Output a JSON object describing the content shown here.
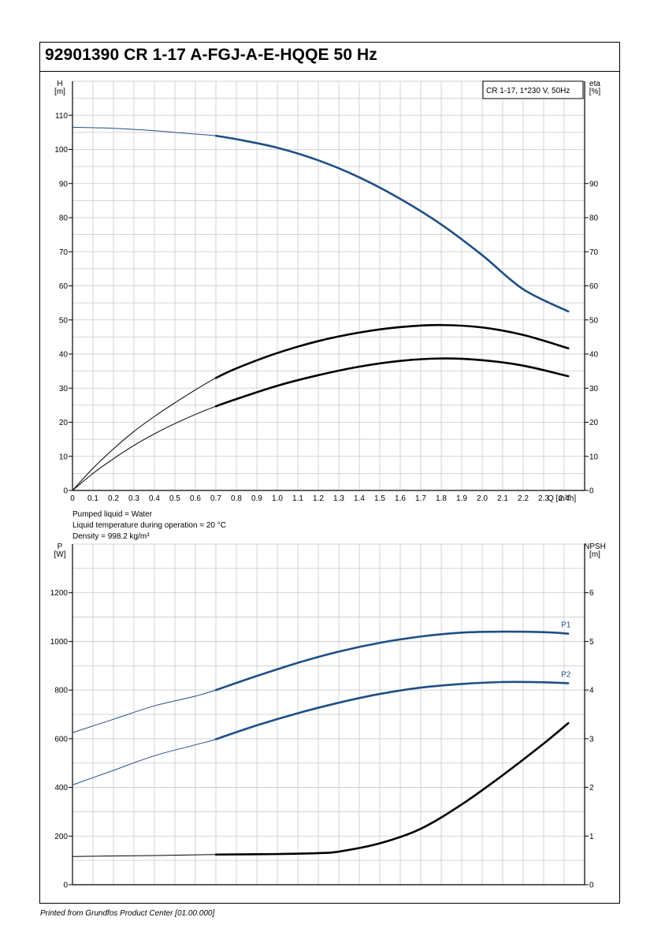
{
  "header": {
    "title": "92901390 CR 1-17 A-FGJ-A-E-HQQE 50 Hz"
  },
  "footer": {
    "text": "Printed from Grundfos Product Center [01.00.000]"
  },
  "liquid_info": [
    "Pumped liquid = Water",
    "Liquid temperature during operation = 20 °C",
    "Density = 998.2 kg/m³"
  ],
  "colors": {
    "blue": "#1f4e85",
    "black": "#000000",
    "grid": "#c8c8c8"
  },
  "chart_data": [
    {
      "type": "line",
      "legend_box": "CR 1-17, 1*230 V, 50Hz",
      "xlabel": "Q [m³/h]",
      "ylabel": [
        "H",
        "[m]"
      ],
      "y2label": [
        "eta",
        "[%]"
      ],
      "xlim": [
        0,
        2.5
      ],
      "ylim": [
        0,
        120
      ],
      "y2lim": [
        0,
        120
      ],
      "xticks": [
        0,
        0.1,
        0.2,
        0.3,
        0.4,
        0.5,
        0.6,
        0.7,
        0.8,
        0.9,
        1.0,
        1.1,
        1.2,
        1.3,
        1.4,
        1.5,
        1.6,
        1.7,
        1.8,
        1.9,
        2.0,
        2.1,
        2.2,
        2.3,
        2.4
      ],
      "xtick_labels": [
        "0",
        "0.1",
        "0.2",
        "0.3",
        "0.4",
        "0.5",
        "0.6",
        "0.7",
        "0.8",
        "0.9",
        "1.0",
        "1.1",
        "1.2",
        "1.3",
        "1.4",
        "1.5",
        "1.6",
        "1.7",
        "1.8",
        "1.9",
        "2.0",
        "2.1",
        "2.2",
        "2.3",
        "2.4"
      ],
      "yticks": [
        0,
        10,
        20,
        30,
        40,
        50,
        60,
        70,
        80,
        90,
        100,
        110
      ],
      "y2ticks": [
        0,
        10,
        20,
        30,
        40,
        50,
        60,
        70,
        80,
        90
      ],
      "grid": true,
      "duty_range": [
        0.7,
        2.42
      ],
      "series": [
        {
          "key": "head",
          "color": "#1f4e85",
          "axis": "left",
          "x": [
            0,
            0.2,
            0.4,
            0.6,
            0.7,
            0.8,
            1.0,
            1.2,
            1.4,
            1.6,
            1.8,
            2.0,
            2.2,
            2.42
          ],
          "y": [
            106.5,
            106.2,
            105.5,
            104.5,
            104,
            103,
            100.5,
            96.8,
            91.8,
            85.5,
            78,
            69,
            59,
            52.5
          ]
        },
        {
          "key": "efficiency_upper",
          "color": "#000000",
          "axis": "right",
          "x": [
            0,
            0.1,
            0.2,
            0.3,
            0.4,
            0.5,
            0.6,
            0.7,
            0.8,
            1.0,
            1.2,
            1.4,
            1.6,
            1.8,
            2.0,
            2.2,
            2.42
          ],
          "y": [
            0,
            6.5,
            12.2,
            17.3,
            21.7,
            25.7,
            29.5,
            33,
            35.8,
            40.3,
            43.8,
            46.3,
            47.9,
            48.5,
            47.8,
            45.6,
            41.7
          ]
        },
        {
          "key": "efficiency_lower",
          "color": "#000000",
          "axis": "right",
          "x": [
            0,
            0.1,
            0.2,
            0.3,
            0.4,
            0.5,
            0.6,
            0.7,
            0.8,
            1.0,
            1.2,
            1.4,
            1.6,
            1.8,
            2.0,
            2.2,
            2.42
          ],
          "y": [
            0,
            5,
            9.3,
            13.2,
            16.6,
            19.6,
            22.3,
            24.7,
            26.8,
            30.7,
            33.8,
            36.3,
            38,
            38.7,
            38.2,
            36.6,
            33.5
          ]
        }
      ]
    },
    {
      "type": "line",
      "ylabel": [
        "P",
        "[W]"
      ],
      "y2label": [
        "NPSH",
        "[m]"
      ],
      "xlim": [
        0,
        2.5
      ],
      "ylim": [
        0,
        1400
      ],
      "y2lim": [
        0,
        7
      ],
      "xticks": [
        0,
        0.1,
        0.2,
        0.3,
        0.4,
        0.5,
        0.6,
        0.7,
        0.8,
        0.9,
        1.0,
        1.1,
        1.2,
        1.3,
        1.4,
        1.5,
        1.6,
        1.7,
        1.8,
        1.9,
        2.0,
        2.1,
        2.2,
        2.3,
        2.4
      ],
      "yticks": [
        0,
        200,
        400,
        600,
        800,
        1000,
        1200
      ],
      "y2ticks": [
        0,
        1,
        2,
        3,
        4,
        5,
        6
      ],
      "grid": true,
      "duty_range": [
        0.7,
        2.42
      ],
      "series": [
        {
          "key": "p1",
          "name": "P1",
          "color": "#1f4e85",
          "axis": "left",
          "x": [
            0,
            0.2,
            0.4,
            0.6,
            0.7,
            0.9,
            1.1,
            1.3,
            1.5,
            1.7,
            1.9,
            2.1,
            2.3,
            2.42
          ],
          "y": [
            625,
            680,
            735,
            775,
            800,
            858,
            912,
            958,
            994,
            1020,
            1036,
            1040,
            1038,
            1032
          ]
        },
        {
          "key": "p2",
          "name": "P2",
          "color": "#1f4e85",
          "axis": "left",
          "x": [
            0,
            0.2,
            0.4,
            0.6,
            0.7,
            0.9,
            1.1,
            1.3,
            1.5,
            1.7,
            1.9,
            2.1,
            2.3,
            2.42
          ],
          "y": [
            410,
            470,
            530,
            575,
            598,
            655,
            705,
            748,
            784,
            810,
            825,
            833,
            832,
            828
          ]
        },
        {
          "key": "npsh",
          "color": "#000000",
          "axis": "right",
          "x": [
            0,
            0.4,
            0.7,
            1.0,
            1.2,
            1.3,
            1.5,
            1.7,
            1.9,
            2.1,
            2.3,
            2.42
          ],
          "y": [
            0.58,
            0.6,
            0.62,
            0.63,
            0.65,
            0.68,
            0.85,
            1.15,
            1.65,
            2.25,
            2.9,
            3.32
          ]
        }
      ]
    }
  ]
}
